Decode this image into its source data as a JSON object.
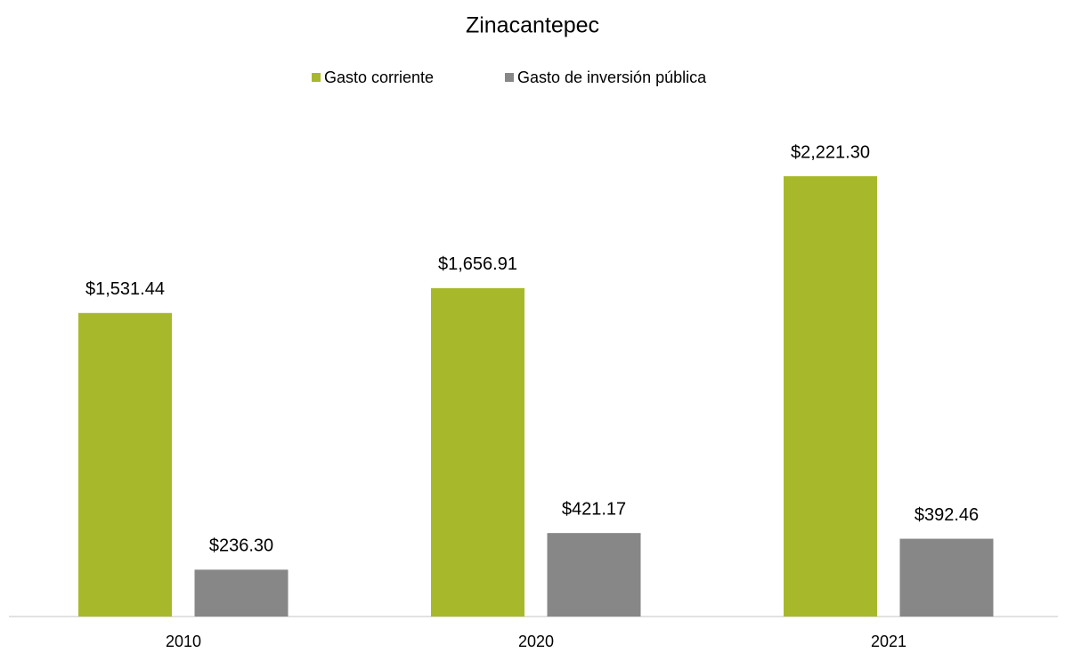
{
  "chart_data": {
    "type": "bar",
    "title": "Zinacantepec",
    "categories": [
      "2010",
      "2020",
      "2021"
    ],
    "series": [
      {
        "name": "Gasto corriente",
        "color": "#a7b92b",
        "values": [
          1531.44,
          1656.91,
          2221.3
        ],
        "value_labels": [
          "$1,531.44",
          "$1,656.91",
          "$2,221.30"
        ]
      },
      {
        "name": "Gasto de inversión pública",
        "color": "#878787",
        "values": [
          236.3,
          421.17,
          392.46
        ],
        "value_labels": [
          "$236.30",
          "$421.17",
          "$392.46"
        ]
      }
    ],
    "ylim": [
      0,
      2500
    ],
    "legend": "top"
  }
}
